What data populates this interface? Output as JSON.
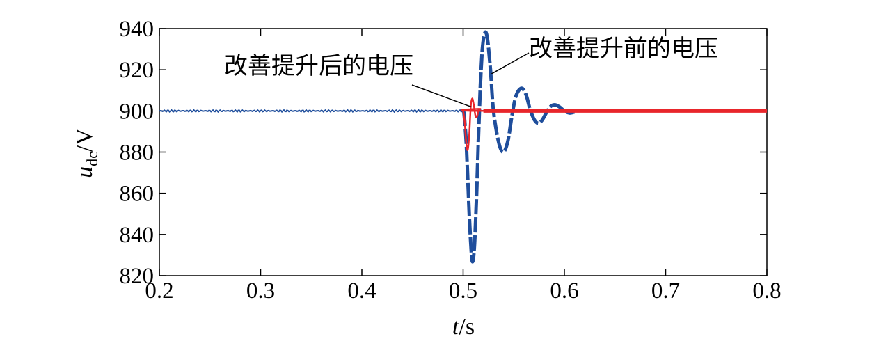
{
  "chart_data": {
    "type": "line",
    "title": "",
    "xlabel_italic": "t",
    "xlabel_unit": "/s",
    "ylabel_italic": "u",
    "ylabel_sub": "dc",
    "ylabel_unit": "/V",
    "xlim": [
      0.2,
      0.8
    ],
    "ylim": [
      820,
      940
    ],
    "xticks": [
      0.2,
      0.3,
      0.4,
      0.5,
      0.6,
      0.7,
      0.8
    ],
    "xtick_labels": [
      "0.2",
      "0.3",
      "0.4",
      "0.5",
      "0.6",
      "0.7",
      "0.8"
    ],
    "yticks": [
      820,
      840,
      860,
      880,
      900,
      920,
      940
    ],
    "ytick_labels": [
      "820",
      "840",
      "860",
      "880",
      "900",
      "920",
      "940"
    ],
    "grid": false,
    "legend": "none",
    "annotations": [
      {
        "text": "改善提升后的电压",
        "target_series": 1
      },
      {
        "text": "改善提升前的电压",
        "target_series": 0
      }
    ],
    "series": [
      {
        "color": "#1f4e9c",
        "points": [
          [
            0.2,
            900
          ],
          [
            0.5,
            900
          ],
          [
            0.501,
            898
          ],
          [
            0.503,
            885
          ],
          [
            0.505,
            862
          ],
          [
            0.507,
            840
          ],
          [
            0.509,
            827
          ],
          [
            0.511,
            833
          ],
          [
            0.513,
            855
          ],
          [
            0.515,
            885
          ],
          [
            0.517,
            912
          ],
          [
            0.519,
            930
          ],
          [
            0.5215,
            938
          ],
          [
            0.524,
            935
          ],
          [
            0.527,
            920
          ],
          [
            0.53,
            900
          ],
          [
            0.535,
            885
          ],
          [
            0.5395,
            880
          ],
          [
            0.544,
            885
          ],
          [
            0.548,
            897
          ],
          [
            0.552,
            907
          ],
          [
            0.5575,
            911
          ],
          [
            0.562,
            908
          ],
          [
            0.566,
            901
          ],
          [
            0.57,
            896
          ],
          [
            0.574,
            894
          ],
          [
            0.578,
            895.5
          ],
          [
            0.582,
            899
          ],
          [
            0.586,
            902
          ],
          [
            0.5905,
            903
          ],
          [
            0.595,
            902
          ],
          [
            0.6,
            900
          ],
          [
            0.605,
            899
          ],
          [
            0.61,
            899.5
          ]
        ]
      },
      {
        "color": "#e8262b",
        "points": [
          [
            0.2,
            900
          ],
          [
            0.5,
            900
          ],
          [
            0.5015,
            895
          ],
          [
            0.503,
            885
          ],
          [
            0.5045,
            881
          ],
          [
            0.506,
            888
          ],
          [
            0.5075,
            902
          ],
          [
            0.509,
            906
          ],
          [
            0.5105,
            903
          ],
          [
            0.512,
            898
          ],
          [
            0.5135,
            897
          ],
          [
            0.515,
            899.5
          ],
          [
            0.517,
            901
          ],
          [
            0.52,
            900
          ],
          [
            0.8,
            900
          ]
        ]
      }
    ]
  }
}
